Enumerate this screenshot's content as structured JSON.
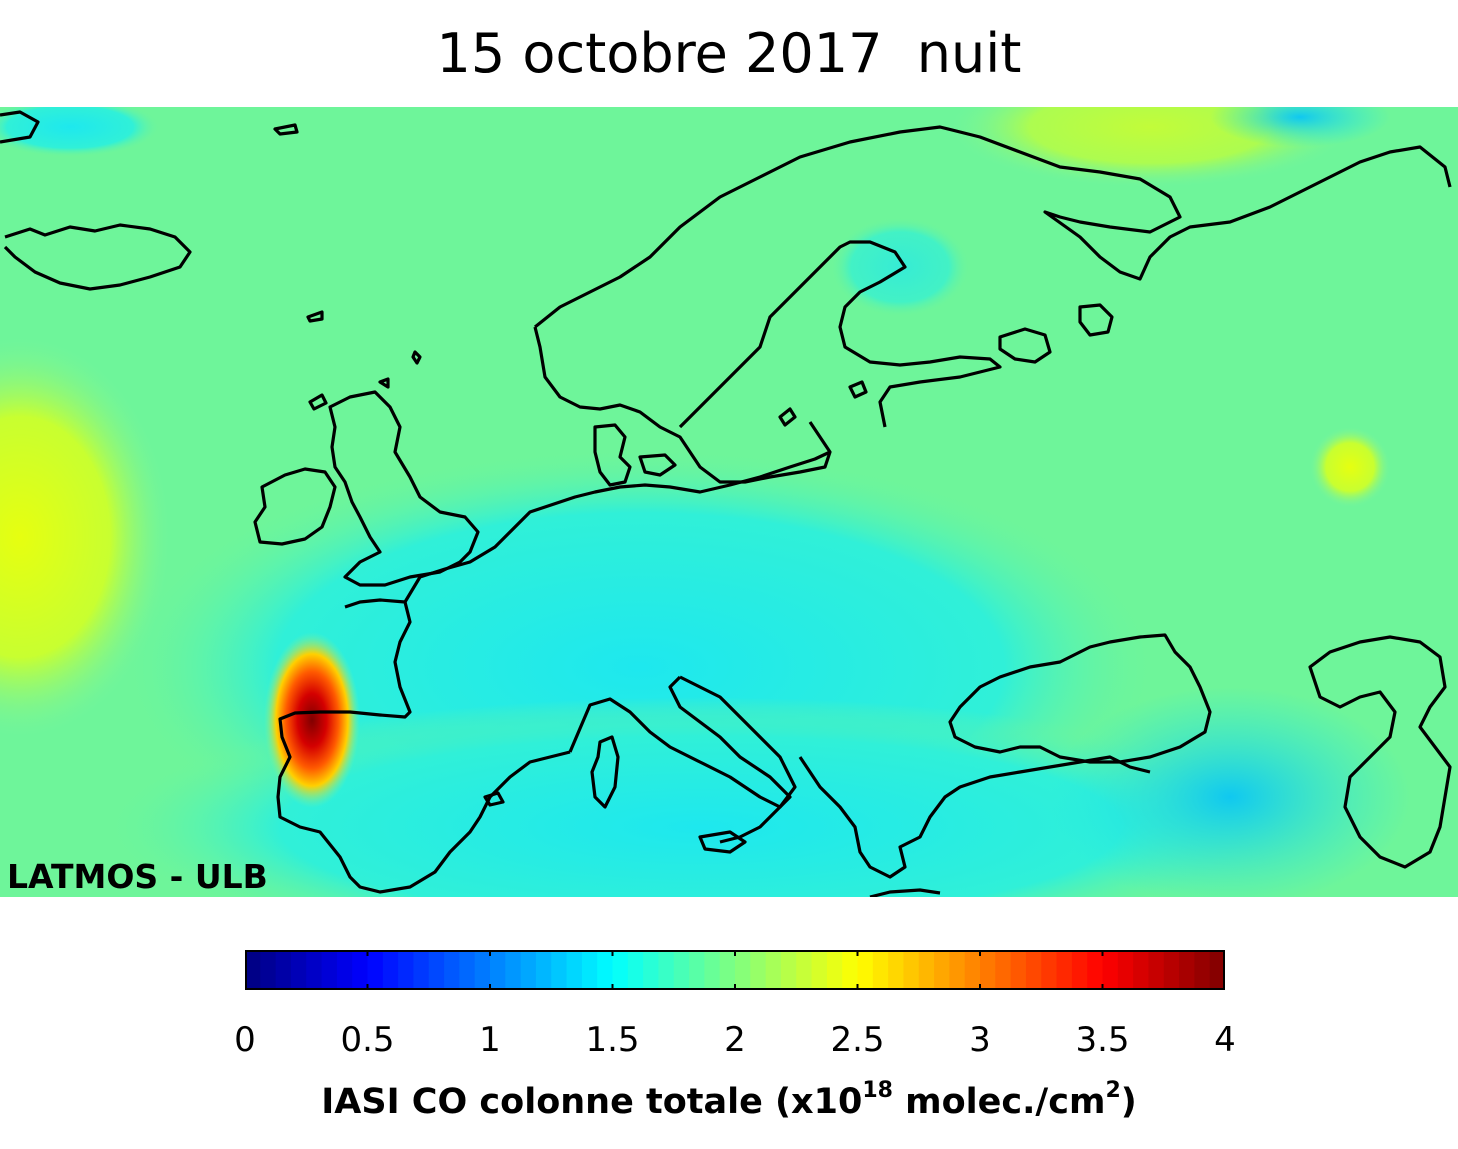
{
  "title": "15 octobre 2017  nuit",
  "watermark": "LATMOS - ULB",
  "colorbar": {
    "ticks": [
      "0",
      "0.5",
      "1",
      "1.5",
      "2",
      "2.5",
      "3",
      "3.5",
      "4"
    ],
    "min": 0,
    "max": 4,
    "title_main": "IASI CO colonne totale (x10",
    "title_exp": "18",
    "title_unit": " molec./cm",
    "title_unit_exp": "2",
    "title_close": ")"
  },
  "colors": {
    "background_field": "#6ef59a",
    "low_field": "#1ee8e8",
    "high_hotspot": "#c00000",
    "coastline": "#000000"
  }
}
